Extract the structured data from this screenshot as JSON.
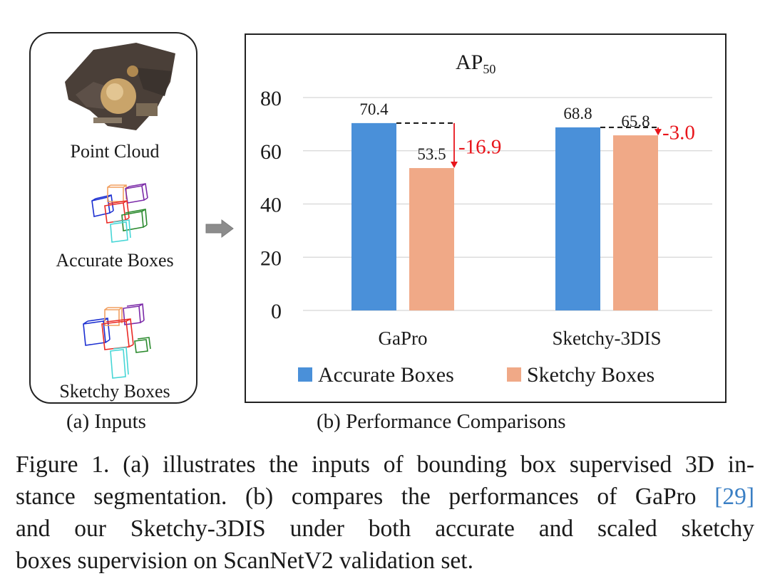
{
  "inputs": {
    "labels": [
      "Point Cloud",
      "Accurate Boxes",
      "Sketchy Boxes"
    ],
    "caption": "(a) Inputs"
  },
  "arrow": {
    "icon": "right-arrow-icon"
  },
  "chart_caption": "(b) Performance Comparisons",
  "chart_data": {
    "type": "bar",
    "title": "AP",
    "title_subscript": "50",
    "categories": [
      "GaPro",
      "Sketchy-3DIS"
    ],
    "series": [
      {
        "name": "Accurate Boxes",
        "values": [
          70.4,
          68.8
        ],
        "color": "#4a90d9"
      },
      {
        "name": "Sketchy Boxes",
        "values": [
          53.5,
          65.8
        ],
        "color": "#f0a987"
      }
    ],
    "value_labels": [
      [
        "70.4",
        "68.8"
      ],
      [
        "53.5",
        "65.8"
      ]
    ],
    "drops": [
      {
        "category": "GaPro",
        "label": "-16.9"
      },
      {
        "category": "Sketchy-3DIS",
        "label": "-3.0"
      }
    ],
    "yticks": [
      "0",
      "20",
      "40",
      "60",
      "80"
    ],
    "ylim": [
      0,
      80
    ],
    "grid": true,
    "legend_position": "bottom",
    "annotation_color": "#e8151b",
    "xlabel": "",
    "ylabel": ""
  },
  "caption": {
    "lines": [
      "Figure 1. (a) illustrates the inputs of bounding box supervised 3D in-",
      "stance segmentation. (b) compares the performances of GaPro ",
      "and our Sketchy-3DIS under both accurate and scaled sketchy",
      "boxes supervision on ScanNetV2 validation set."
    ],
    "ref": "[29]"
  }
}
